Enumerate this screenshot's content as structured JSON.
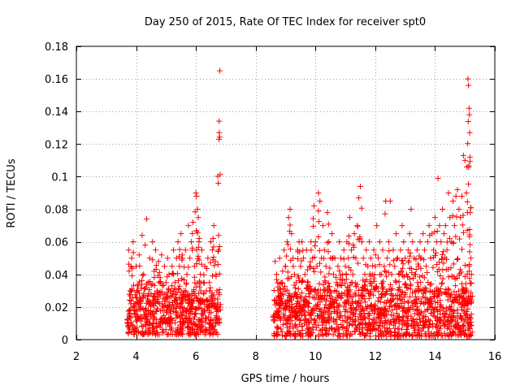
{
  "chart_data": {
    "type": "scatter",
    "title": "Day 250 of 2015, Rate Of TEC Index for receiver spt0",
    "xlabel": "GPS time / hours",
    "ylabel": "ROTI / TECUs",
    "xlim": [
      2,
      16
    ],
    "ylim": [
      0,
      0.18
    ],
    "xticks": [
      2,
      4,
      6,
      8,
      10,
      12,
      14,
      16
    ],
    "yticks": [
      0,
      0.02,
      0.04,
      0.06,
      0.08,
      0.1,
      0.12,
      0.14,
      0.16,
      0.18
    ],
    "x_tick_labels": [
      "2",
      "4",
      "6",
      "8",
      "10",
      "12",
      "14",
      "16"
    ],
    "y_tick_labels": [
      "0",
      "0.02",
      "0.04",
      "0.06",
      "0.08",
      "0.1",
      "0.12",
      "0.14",
      "0.16",
      "0.18"
    ],
    "grid": true,
    "marker": "plus",
    "marker_color": "#ff0000",
    "series": [
      {
        "name": "ROTI",
        "points": [
          [
            3.7,
            0.012
          ],
          [
            3.75,
            0.055
          ],
          [
            3.8,
            0.03
          ],
          [
            3.85,
            0.05
          ],
          [
            3.9,
            0.06
          ],
          [
            3.95,
            0.02
          ],
          [
            4.0,
            0.045
          ],
          [
            4.05,
            0.033
          ],
          [
            4.1,
            0.052
          ],
          [
            4.15,
            0.025
          ],
          [
            4.2,
            0.064
          ],
          [
            4.25,
            0.04
          ],
          [
            4.3,
            0.058
          ],
          [
            4.35,
            0.074
          ],
          [
            4.4,
            0.035
          ],
          [
            4.45,
            0.05
          ],
          [
            4.5,
            0.028
          ],
          [
            4.55,
            0.06
          ],
          [
            4.6,
            0.042
          ],
          [
            4.65,
            0.055
          ],
          [
            4.7,
            0.03
          ],
          [
            4.75,
            0.048
          ],
          [
            4.8,
            0.038
          ],
          [
            4.85,
            0.052
          ],
          [
            4.9,
            0.025
          ],
          [
            4.95,
            0.045
          ],
          [
            5.0,
            0.035
          ],
          [
            5.05,
            0.05
          ],
          [
            5.1,
            0.04
          ],
          [
            5.15,
            0.03
          ],
          [
            5.2,
            0.045
          ],
          [
            5.25,
            0.055
          ],
          [
            5.3,
            0.035
          ],
          [
            5.35,
            0.05
          ],
          [
            5.4,
            0.06
          ],
          [
            5.45,
            0.045
          ],
          [
            5.5,
            0.065
          ],
          [
            5.55,
            0.05
          ],
          [
            5.6,
            0.03
          ],
          [
            5.65,
            0.055
          ],
          [
            5.7,
            0.04
          ],
          [
            5.75,
            0.07
          ],
          [
            5.8,
            0.05
          ],
          [
            5.85,
            0.06
          ],
          [
            5.9,
            0.072
          ],
          [
            5.95,
            0.045
          ],
          [
            6.0,
            0.09
          ],
          [
            6.02,
            0.088
          ],
          [
            6.05,
            0.08
          ],
          [
            6.08,
            0.075
          ],
          [
            6.1,
            0.06
          ],
          [
            6.15,
            0.04
          ],
          [
            6.2,
            0.055
          ],
          [
            6.25,
            0.035
          ],
          [
            6.3,
            0.045
          ],
          [
            6.35,
            0.03
          ],
          [
            6.4,
            0.05
          ],
          [
            6.45,
            0.035
          ],
          [
            6.5,
            0.06
          ],
          [
            6.55,
            0.055
          ],
          [
            6.6,
            0.07
          ],
          [
            6.65,
            0.048
          ],
          [
            6.7,
            0.03
          ],
          [
            6.75,
            0.096
          ],
          [
            6.77,
            0.123
          ],
          [
            6.78,
            0.127
          ],
          [
            6.8,
            0.165
          ],
          [
            6.8,
            0.02
          ],
          [
            8.6,
            0.015
          ],
          [
            8.65,
            0.048
          ],
          [
            8.7,
            0.04
          ],
          [
            8.75,
            0.03
          ],
          [
            8.8,
            0.05
          ],
          [
            8.85,
            0.035
          ],
          [
            8.9,
            0.042
          ],
          [
            8.95,
            0.055
          ],
          [
            9.0,
            0.045
          ],
          [
            9.05,
            0.06
          ],
          [
            9.1,
            0.075
          ],
          [
            9.15,
            0.08
          ],
          [
            9.2,
            0.065
          ],
          [
            9.25,
            0.05
          ],
          [
            9.3,
            0.04
          ],
          [
            9.35,
            0.035
          ],
          [
            9.4,
            0.055
          ],
          [
            9.45,
            0.06
          ],
          [
            9.5,
            0.045
          ],
          [
            9.55,
            0.06
          ],
          [
            9.6,
            0.05
          ],
          [
            9.65,
            0.04
          ],
          [
            9.7,
            0.055
          ],
          [
            9.75,
            0.035
          ],
          [
            9.8,
            0.045
          ],
          [
            9.85,
            0.06
          ],
          [
            9.9,
            0.05
          ],
          [
            9.95,
            0.082
          ],
          [
            10.0,
            0.06
          ],
          [
            10.05,
            0.045
          ],
          [
            10.1,
            0.09
          ],
          [
            10.15,
            0.085
          ],
          [
            10.2,
            0.05
          ],
          [
            10.25,
            0.07
          ],
          [
            10.3,
            0.055
          ],
          [
            10.35,
            0.045
          ],
          [
            10.4,
            0.078
          ],
          [
            10.45,
            0.06
          ],
          [
            10.5,
            0.05
          ],
          [
            10.55,
            0.065
          ],
          [
            10.6,
            0.04
          ],
          [
            10.65,
            0.05
          ],
          [
            10.7,
            0.035
          ],
          [
            10.75,
            0.045
          ],
          [
            10.8,
            0.06
          ],
          [
            10.85,
            0.05
          ],
          [
            10.9,
            0.04
          ],
          [
            10.95,
            0.055
          ],
          [
            11.0,
            0.045
          ],
          [
            11.05,
            0.06
          ],
          [
            11.1,
            0.05
          ],
          [
            11.15,
            0.075
          ],
          [
            11.2,
            0.055
          ],
          [
            11.25,
            0.04
          ],
          [
            11.3,
            0.065
          ],
          [
            11.35,
            0.05
          ],
          [
            11.4,
            0.07
          ],
          [
            11.45,
            0.087
          ],
          [
            11.5,
            0.094
          ],
          [
            11.55,
            0.06
          ],
          [
            11.6,
            0.05
          ],
          [
            11.65,
            0.04
          ],
          [
            11.7,
            0.055
          ],
          [
            11.75,
            0.045
          ],
          [
            11.8,
            0.06
          ],
          [
            11.85,
            0.05
          ],
          [
            11.9,
            0.04
          ],
          [
            11.95,
            0.055
          ],
          [
            12.0,
            0.045
          ],
          [
            12.05,
            0.07
          ],
          [
            12.1,
            0.05
          ],
          [
            12.15,
            0.06
          ],
          [
            12.2,
            0.04
          ],
          [
            12.25,
            0.055
          ],
          [
            12.3,
            0.045
          ],
          [
            12.35,
            0.085
          ],
          [
            12.4,
            0.05
          ],
          [
            12.45,
            0.06
          ],
          [
            12.5,
            0.085
          ],
          [
            12.55,
            0.04
          ],
          [
            12.6,
            0.055
          ],
          [
            12.65,
            0.045
          ],
          [
            12.7,
            0.065
          ],
          [
            12.75,
            0.05
          ],
          [
            12.8,
            0.04
          ],
          [
            12.85,
            0.055
          ],
          [
            12.9,
            0.07
          ],
          [
            12.95,
            0.06
          ],
          [
            13.0,
            0.05
          ],
          [
            13.05,
            0.04
          ],
          [
            13.1,
            0.055
          ],
          [
            13.15,
            0.065
          ],
          [
            13.2,
            0.08
          ],
          [
            13.25,
            0.06
          ],
          [
            13.3,
            0.05
          ],
          [
            13.35,
            0.04
          ],
          [
            13.4,
            0.055
          ],
          [
            13.45,
            0.045
          ],
          [
            13.5,
            0.06
          ],
          [
            13.55,
            0.05
          ],
          [
            13.6,
            0.065
          ],
          [
            13.65,
            0.055
          ],
          [
            13.7,
            0.045
          ],
          [
            13.75,
            0.06
          ],
          [
            13.8,
            0.07
          ],
          [
            13.85,
            0.05
          ],
          [
            13.9,
            0.065
          ],
          [
            13.95,
            0.055
          ],
          [
            14.0,
            0.075
          ],
          [
            14.05,
            0.06
          ],
          [
            14.1,
            0.099
          ],
          [
            14.15,
            0.07
          ],
          [
            14.2,
            0.06
          ],
          [
            14.25,
            0.08
          ],
          [
            14.3,
            0.065
          ],
          [
            14.35,
            0.07
          ],
          [
            14.4,
            0.055
          ],
          [
            14.45,
            0.09
          ],
          [
            14.5,
            0.075
          ],
          [
            14.55,
            0.06
          ],
          [
            14.6,
            0.085
          ],
          [
            14.65,
            0.07
          ],
          [
            14.7,
            0.088
          ],
          [
            14.75,
            0.092
          ],
          [
            14.8,
            0.08
          ],
          [
            14.85,
            0.075
          ],
          [
            14.9,
            0.088
          ],
          [
            14.95,
            0.113
          ],
          [
            15.0,
            0.11
          ],
          [
            15.05,
            0.09
          ],
          [
            15.1,
            0.16
          ],
          [
            15.12,
            0.156
          ],
          [
            15.14,
            0.142
          ],
          [
            15.15,
            0.138
          ],
          [
            15.16,
            0.127
          ],
          [
            15.17,
            0.112
          ],
          [
            15.18,
            0.078
          ],
          [
            15.2,
            0.05
          ],
          [
            15.22,
            0.04
          ]
        ],
        "low_band": [
          {
            "x_start": 3.7,
            "x_end": 6.8,
            "y_min": 0.003,
            "y_max": 0.03
          },
          {
            "x_start": 8.6,
            "x_end": 15.25,
            "y_min": 0.002,
            "y_max": 0.032
          }
        ]
      }
    ]
  }
}
